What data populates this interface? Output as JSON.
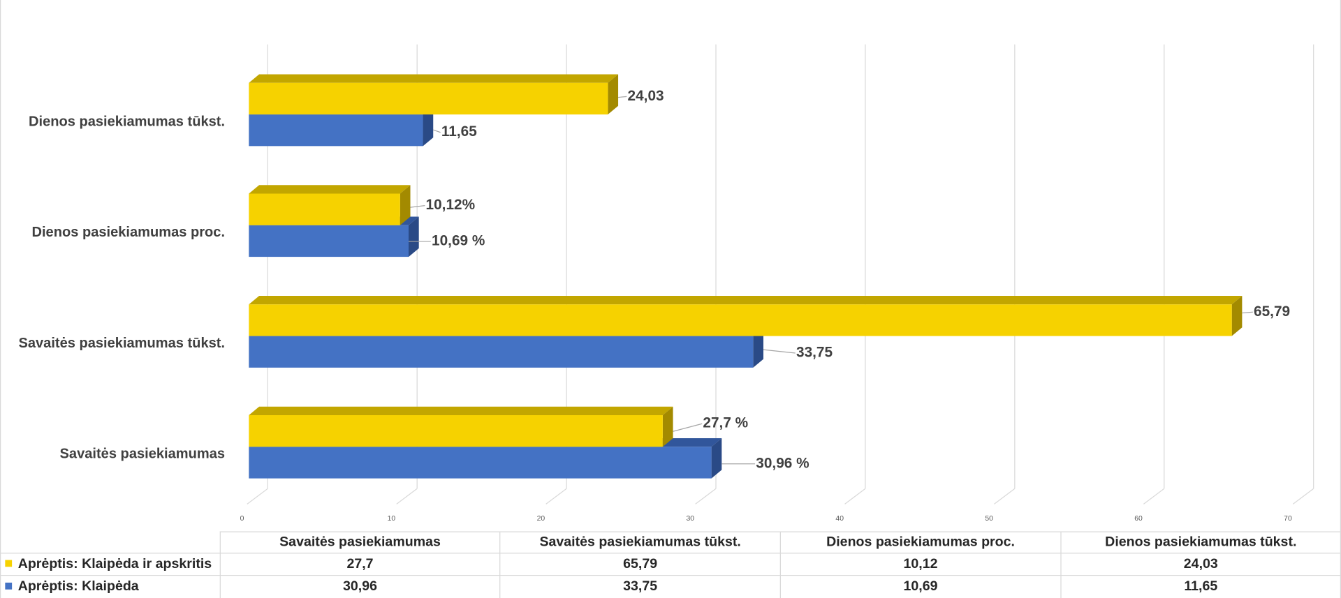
{
  "chart_data": {
    "type": "bar",
    "orientation": "horizontal",
    "style": "3d-clustered",
    "categories": [
      "Savaitės pasiekiamumas",
      "Savaitės pasiekiamumas tūkst.",
      "Dienos pasiekiamumas proc.",
      "Dienos pasiekiamumas tūkst."
    ],
    "series": [
      {
        "name": "Aprėptis: Klaipėda ir apskritis",
        "color": "#F6D200",
        "top_color": "#C2A600",
        "side_color": "#A38A00",
        "values": [
          27.7,
          65.79,
          10.12,
          24.03
        ],
        "data_labels": [
          "27,7 %",
          "65,79",
          "10,12%",
          "24,03"
        ],
        "table_values": [
          "27,7",
          "65,79",
          "10,12",
          "24,03"
        ]
      },
      {
        "name": "Aprėptis: Klaipėda",
        "color": "#4472C4",
        "top_color": "#31569B",
        "side_color": "#2A4A86",
        "values": [
          30.96,
          33.75,
          10.69,
          11.65
        ],
        "data_labels": [
          "30,96 %",
          "33,75",
          "10,69 %",
          "11,65"
        ],
        "table_values": [
          "30,96",
          "33,75",
          "10,69",
          "11,65"
        ]
      }
    ],
    "xlim": [
      0,
      70
    ],
    "x_ticks": [
      0,
      10,
      20,
      30,
      40,
      50,
      60,
      70
    ],
    "grid": true,
    "legend": "bottom",
    "data_table": true
  }
}
